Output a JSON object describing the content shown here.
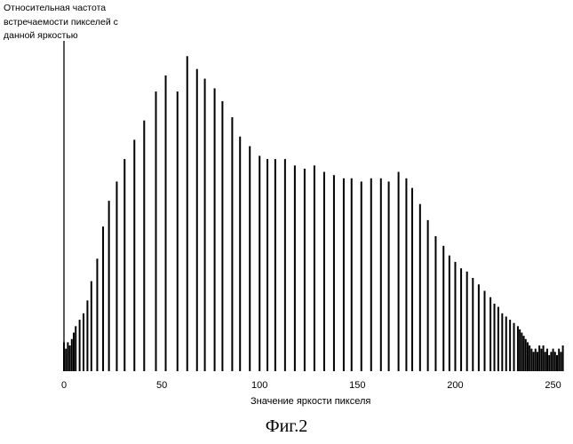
{
  "chart_data": {
    "type": "bar",
    "title": "",
    "ylabel_lines": [
      "Относительная частота",
      "встречаемости пикселей с",
      "данной яркостью"
    ],
    "xlabel": "Значение яркости пикселя",
    "xticks": [
      "0",
      "50",
      "100",
      "150",
      "200",
      "250"
    ],
    "xlim": [
      0,
      257
    ],
    "ylim": [
      0,
      1
    ],
    "grid": false,
    "caption": "Фиг.2",
    "bar_color": "#000000",
    "series": [
      {
        "x": [
          0,
          1,
          2,
          3,
          4,
          5,
          6,
          8,
          10,
          12,
          14,
          17,
          20,
          23,
          27,
          31,
          36,
          41,
          47,
          52,
          58,
          63,
          68,
          72,
          77,
          81,
          86,
          90,
          95,
          100,
          104,
          108,
          113,
          118,
          123,
          128,
          133,
          138,
          143,
          147,
          152,
          157,
          162,
          166,
          171,
          175,
          178,
          182,
          186,
          190,
          194,
          197,
          200,
          203,
          206,
          209,
          212,
          215,
          218,
          220,
          222,
          224,
          226,
          228,
          230,
          232,
          233,
          234,
          235,
          236,
          237,
          238,
          239,
          240,
          241,
          242,
          243,
          244,
          245,
          246,
          247,
          248,
          249,
          250,
          251,
          252,
          253,
          254,
          255
        ],
        "values": [
          0.09,
          0.07,
          0.09,
          0.08,
          0.1,
          0.12,
          0.14,
          0.16,
          0.18,
          0.22,
          0.28,
          0.35,
          0.45,
          0.53,
          0.59,
          0.66,
          0.72,
          0.78,
          0.87,
          0.92,
          0.87,
          0.98,
          0.94,
          0.91,
          0.88,
          0.84,
          0.79,
          0.73,
          0.7,
          0.67,
          0.66,
          0.66,
          0.66,
          0.64,
          0.63,
          0.64,
          0.62,
          0.61,
          0.6,
          0.6,
          0.59,
          0.6,
          0.6,
          0.59,
          0.62,
          0.6,
          0.57,
          0.52,
          0.47,
          0.42,
          0.39,
          0.36,
          0.34,
          0.32,
          0.31,
          0.29,
          0.27,
          0.25,
          0.23,
          0.21,
          0.2,
          0.18,
          0.17,
          0.16,
          0.15,
          0.14,
          0.13,
          0.12,
          0.11,
          0.1,
          0.09,
          0.08,
          0.07,
          0.06,
          0.07,
          0.06,
          0.08,
          0.07,
          0.08,
          0.06,
          0.07,
          0.05,
          0.06,
          0.07,
          0.06,
          0.05,
          0.07,
          0.06,
          0.08
        ]
      }
    ]
  }
}
